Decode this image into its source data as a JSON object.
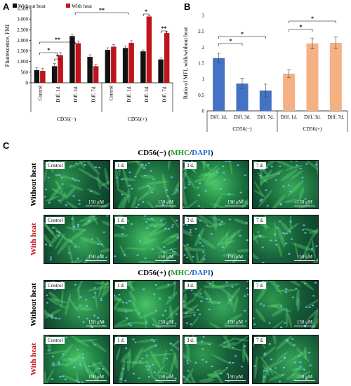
{
  "panels": {
    "a": "A",
    "b": "B",
    "c": "C"
  },
  "chart_data": [
    {
      "type": "bar",
      "ylabel": "Fluorescence, FMI",
      "ylim": [
        0,
        3500
      ],
      "yticks": [
        "0",
        "500",
        "1,000",
        "1,500",
        "2,000",
        "2,500",
        "3,000",
        "3,500"
      ],
      "categories": [
        "Control",
        "Diff. 1d.",
        "Diff. 3d.",
        "Diff. 7d.",
        "Control",
        "Diff. 1d.",
        "Diff. 3d.",
        "Diff. 7d."
      ],
      "groups": [
        "CD56(−)",
        "CD56(+)"
      ],
      "legend_position": "top-left",
      "series": [
        {
          "name": "Without heat",
          "color": "#111111",
          "values": [
            600,
            780,
            2200,
            1220,
            1550,
            1640,
            1480,
            1100
          ],
          "errors": [
            110,
            130,
            90,
            100,
            100,
            90,
            70,
            70
          ]
        },
        {
          "name": "With heat",
          "color": "#c0141b",
          "values": [
            560,
            1300,
            1860,
            780,
            1700,
            1880,
            3120,
            2340
          ],
          "errors": [
            130,
            120,
            110,
            90,
            100,
            100,
            50,
            80
          ]
        }
      ],
      "annotations": [
        "**",
        "*",
        "*",
        "**",
        "*",
        "**"
      ]
    },
    {
      "type": "bar",
      "ylabel": "Ratio of MFI, with/without heat",
      "ylim": [
        0,
        3
      ],
      "yticks": [
        "0",
        "0.5",
        "1",
        "1.5",
        "2",
        "2.5",
        "3"
      ],
      "categories": [
        "Diff. 1d.",
        "Diff. 3d.",
        "Diff. 7d.",
        "Diff. 1d.",
        "Diff. 3d.",
        "Diff. 7d."
      ],
      "groups": [
        "CD56(−)",
        "CD56(+)"
      ],
      "colors": [
        "#4472c4",
        "#4472c4",
        "#4472c4",
        "#f4b183",
        "#f4b183",
        "#f4b183"
      ],
      "values": [
        1.66,
        0.86,
        0.64,
        1.17,
        2.12,
        2.14
      ],
      "errors": [
        0.15,
        0.17,
        0.2,
        0.12,
        0.17,
        0.18
      ],
      "annotations": [
        "*",
        "*",
        "*",
        "*"
      ]
    }
  ],
  "micrographs": {
    "scale_label": "150 μM",
    "blocks": [
      {
        "title_prefix": "CD56(−) (",
        "title_mhc": "MHC",
        "title_sep": "/",
        "title_dapi": "DAPI",
        "title_suffix": ")",
        "rows": [
          {
            "label": "Without heat",
            "color": "#000000",
            "tiles": [
              "Control",
              "1 d.",
              "3 d.",
              "7 d."
            ]
          },
          {
            "label": "With heat",
            "color": "#c0141b",
            "tiles": [
              "Control",
              "1 d.",
              "3 d.",
              "7 d."
            ]
          }
        ]
      },
      {
        "title_prefix": "CD56(+) (",
        "title_mhc": "MHC",
        "title_sep": "/",
        "title_dapi": "DAPI",
        "title_suffix": ")",
        "rows": [
          {
            "label": "Without heat",
            "color": "#000000",
            "tiles": [
              "Control",
              "1 d.",
              "3 d.",
              "7 d."
            ]
          },
          {
            "label": "With heat",
            "color": "#c0141b",
            "tiles": [
              "Control",
              "1 d.",
              "3 d.",
              "7 d."
            ]
          }
        ]
      }
    ]
  }
}
